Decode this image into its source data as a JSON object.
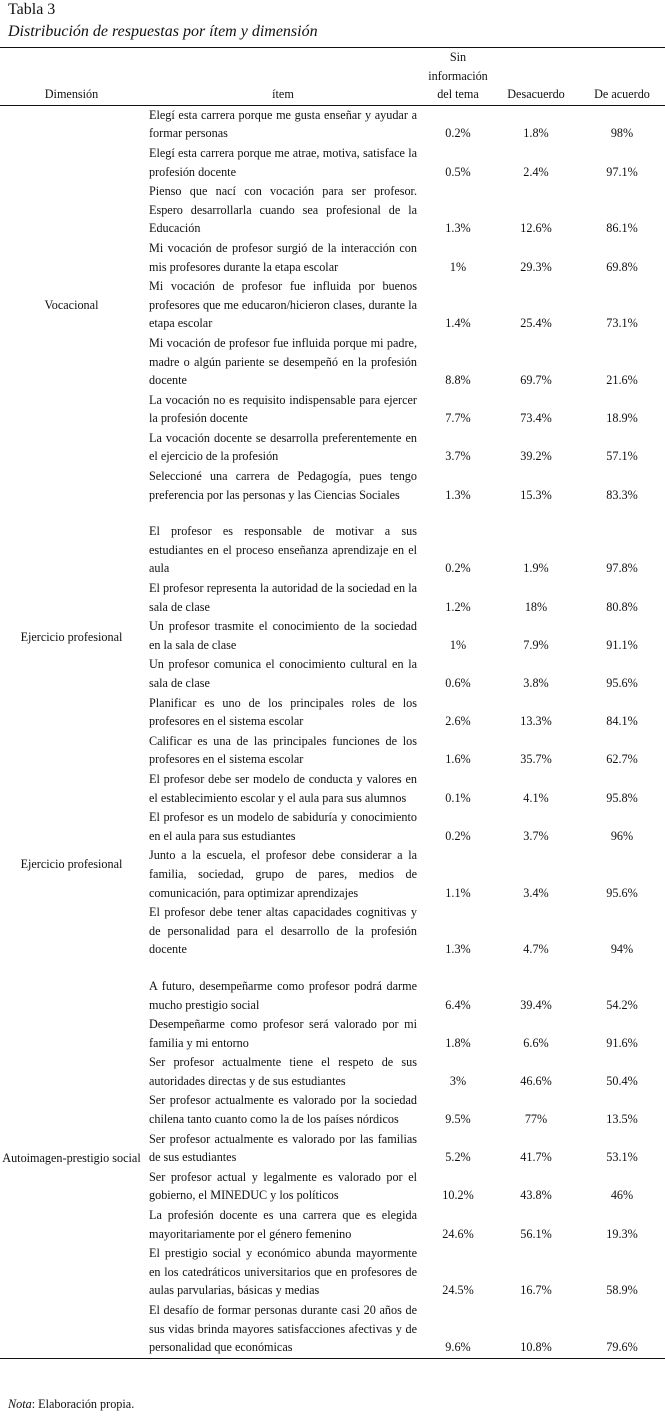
{
  "label": "Tabla 3",
  "title": "Distribución de respuestas por ítem y dimensión",
  "columns": [
    "Dimensión",
    "ítem",
    "Sin información del tema",
    "Desacuerdo",
    "De acuerdo"
  ],
  "groups": [
    {
      "dimension": "Vocacional",
      "rows": [
        {
          "item": "Elegí esta carrera porque me gusta enseñar y ayudar a formar personas",
          "sin": "0.2%",
          "des": "1.8%",
          "de": "98%"
        },
        {
          "item": "Elegí esta carrera porque me atrae, motiva, satisface la profesión docente",
          "sin": "0.5%",
          "des": "2.4%",
          "de": "97.1%"
        },
        {
          "item": "Pienso que nací con vocación para ser profesor. Espero desarrollarla cuando sea profesional de la Educación",
          "sin": "1.3%",
          "des": "12.6%",
          "de": "86.1%"
        },
        {
          "item": "Mi vocación de profesor surgió de la interacción con mis profesores durante la etapa escolar",
          "sin": "1%",
          "des": "29.3%",
          "de": "69.8%"
        },
        {
          "item": "Mi vocación de profesor fue influida por buenos profesores que me educaron/hicieron clases, durante la etapa escolar",
          "sin": "1.4%",
          "des": "25.4%",
          "de": "73.1%"
        },
        {
          "item": "Mi vocación de profesor fue influida porque mi padre, madre o algún pariente se desempeñó en la profesión docente",
          "sin": "8.8%",
          "des": "69.7%",
          "de": "21.6%"
        },
        {
          "item": "La vocación no es requisito indispensable para ejercer la profesión docente",
          "sin": "7.7%",
          "des": "73.4%",
          "de": "18.9%"
        },
        {
          "item": "La vocación docente se desarrolla preferentemente en el ejercicio de la profesión",
          "sin": "3.7%",
          "des": "39.2%",
          "de": "57.1%"
        },
        {
          "item": "Seleccioné una carrera de Pedagogía, pues tengo preferencia por las personas y las Ciencias Sociales",
          "sin": "1.3%",
          "des": "15.3%",
          "de": "83.3%"
        }
      ]
    },
    {
      "dimension": "Ejercicio profesional",
      "rows": [
        {
          "item": "El profesor es responsable de motivar a sus estudiantes en el proceso enseñanza aprendizaje en el aula",
          "sin": "0.2%",
          "des": "1.9%",
          "de": "97.8%"
        },
        {
          "item": "El profesor representa la autoridad de la sociedad en la sala de clase",
          "sin": "1.2%",
          "des": "18%",
          "de": "80.8%"
        },
        {
          "item": "Un profesor trasmite el conocimiento de la sociedad en la sala de clase",
          "sin": "1%",
          "des": "7.9%",
          "de": "91.1%"
        },
        {
          "item": "Un profesor comunica el conocimiento cultural en la sala de clase",
          "sin": "0.6%",
          "des": "3.8%",
          "de": "95.6%"
        },
        {
          "item": "Planificar es uno de los principales roles de los profesores en el sistema escolar",
          "sin": "2.6%",
          "des": "13.3%",
          "de": "84.1%"
        },
        {
          "item": "Calificar es una de las principales funciones de los profesores en el sistema escolar",
          "sin": "1.6%",
          "des": "35.7%",
          "de": "62.7%"
        }
      ]
    },
    {
      "dimension": "Ejercicio profesional",
      "rows": [
        {
          "item": "El profesor debe ser modelo de conducta y valores en el establecimiento escolar y el aula para sus alumnos",
          "sin": "0.1%",
          "des": "4.1%",
          "de": "95.8%"
        },
        {
          "item": "El profesor es un modelo de sabiduría y conocimiento en el aula para sus estudiantes",
          "sin": "0.2%",
          "des": "3.7%",
          "de": "96%"
        },
        {
          "item": "Junto a la escuela, el profesor debe considerar a la familia, sociedad, grupo de pares, medios de comunicación, para optimizar aprendizajes",
          "sin": "1.1%",
          "des": "3.4%",
          "de": "95.6%"
        },
        {
          "item": "El profesor debe tener altas capacidades cognitivas y de personalidad para el desarrollo de la profesión docente",
          "sin": "1.3%",
          "des": "4.7%",
          "de": "94%"
        }
      ]
    },
    {
      "dimension": "Autoimagen-prestigio social",
      "rows": [
        {
          "item": "A futuro, desempeñarme como profesor podrá darme mucho prestigio social",
          "sin": "6.4%",
          "des": "39.4%",
          "de": "54.2%"
        },
        {
          "item": "Desempeñarme como profesor será valorado por mi familia y mi entorno",
          "sin": "1.8%",
          "des": "6.6%",
          "de": "91.6%"
        },
        {
          "item": "Ser profesor actualmente tiene el respeto de sus autoridades directas y de sus estudiantes",
          "sin": "3%",
          "des": "46.6%",
          "de": "50.4%"
        },
        {
          "item": "Ser profesor actualmente es valorado por la sociedad chilena tanto cuanto como la de los países nórdicos",
          "sin": "9.5%",
          "des": "77%",
          "de": "13.5%"
        },
        {
          "item": "Ser profesor actualmente es valorado por las familias de sus estudiantes",
          "sin": "5.2%",
          "des": "41.7%",
          "de": "53.1%"
        },
        {
          "item": "Ser profesor actual y legalmente es valorado por el gobierno, el MINEDUC y los políticos",
          "sin": "10.2%",
          "des": "43.8%",
          "de": "46%"
        },
        {
          "item": "La profesión docente es una carrera que es elegida mayoritariamente por el género femenino",
          "sin": "24.6%",
          "des": "56.1%",
          "de": "19.3%"
        },
        {
          "item": "El prestigio social y económico abunda mayormente en los catedráticos universitarios que en profesores de aulas parvularias, básicas y medias",
          "sin": "24.5%",
          "des": "16.7%",
          "de": "58.9%"
        },
        {
          "item": "El desafío de formar personas durante casi 20 años de sus vidas brinda mayores satisfacciones afectivas y de personalidad que económicas",
          "sin": "9.6%",
          "des": "10.8%",
          "de": "79.6%"
        }
      ]
    }
  ],
  "note_label": "Nota",
  "note_text": ": Elaboración propia."
}
